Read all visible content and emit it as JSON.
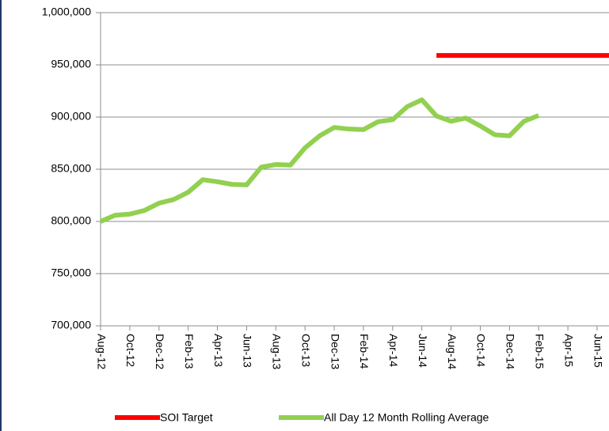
{
  "chart_data": {
    "type": "line",
    "categories": [
      "Aug-12",
      null,
      "Oct-12",
      null,
      "Dec-12",
      null,
      "Feb-13",
      null,
      "Apr-13",
      null,
      "Jun-13",
      null,
      "Aug-13",
      null,
      "Oct-13",
      null,
      "Dec-13",
      null,
      "Feb-14",
      null,
      "Apr-14",
      null,
      "Jun-14",
      null,
      "Aug-14",
      null,
      "Oct-14",
      null,
      "Dec-14",
      null,
      "Feb-15",
      null,
      "Apr-15",
      null,
      "Jun-15",
      null
    ],
    "series": [
      {
        "name": "SOI Target",
        "color": "#ff0000",
        "values": [
          null,
          null,
          null,
          null,
          null,
          null,
          null,
          null,
          null,
          null,
          null,
          null,
          null,
          null,
          null,
          null,
          null,
          null,
          null,
          null,
          null,
          null,
          null,
          959000,
          959000,
          959000,
          959000,
          959000,
          959000,
          959000,
          959000,
          959000,
          959000,
          959000,
          959000,
          959000
        ]
      },
      {
        "name": "All Day 12 Month Rolling Average",
        "color": "#92d050",
        "values": [
          800000,
          806000,
          807000,
          810500,
          817500,
          821000,
          828000,
          840000,
          838000,
          835500,
          835000,
          852000,
          854500,
          854000,
          870500,
          882000,
          890000,
          888500,
          888000,
          895500,
          897500,
          910000,
          916500,
          901000,
          896000,
          899000,
          891500,
          883000,
          882000,
          896000,
          901500,
          null,
          null,
          null,
          null,
          null
        ]
      }
    ],
    "ylim": [
      700000,
      1000000
    ],
    "yticks": [
      {
        "value": 700000,
        "label": "700,000"
      },
      {
        "value": 750000,
        "label": "750,000"
      },
      {
        "value": 800000,
        "label": "800,000"
      },
      {
        "value": 850000,
        "label": "850,000"
      },
      {
        "value": 900000,
        "label": "900,000"
      },
      {
        "value": 950000,
        "label": "950,000"
      },
      {
        "value": 1000000,
        "label": "1,000,000"
      }
    ],
    "grid": true,
    "legend": "bottom"
  }
}
